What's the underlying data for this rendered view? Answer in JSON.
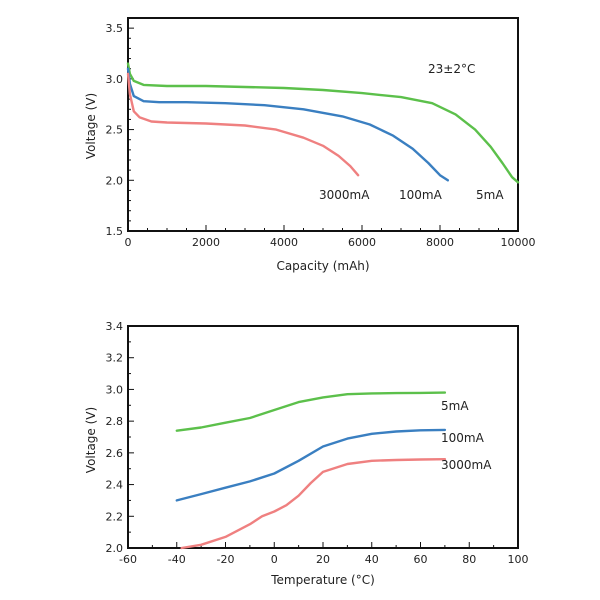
{
  "chart_data": [
    {
      "type": "line",
      "title": "",
      "xlabel": "Capacity (mAh)",
      "ylabel": "Voltage (V)",
      "xlim": [
        0,
        10000
      ],
      "ylim": [
        1.5,
        3.6
      ],
      "xticks": [
        0,
        2000,
        4000,
        6000,
        8000,
        10000
      ],
      "yticks": [
        1.5,
        2.0,
        2.5,
        3.0,
        3.5
      ],
      "annotation": "23±2°C",
      "series": [
        {
          "name": "5mA",
          "color": "#5cc04b",
          "x": [
            0,
            50,
            150,
            400,
            1000,
            2000,
            3000,
            4000,
            5000,
            6000,
            7000,
            7800,
            8400,
            8900,
            9300,
            9600,
            9850,
            10000
          ],
          "y": [
            3.15,
            3.05,
            2.98,
            2.94,
            2.93,
            2.93,
            2.92,
            2.91,
            2.89,
            2.86,
            2.82,
            2.76,
            2.65,
            2.5,
            2.33,
            2.17,
            2.03,
            1.98
          ]
        },
        {
          "name": "100mA",
          "color": "#3a7fc1",
          "x": [
            0,
            50,
            150,
            400,
            800,
            1500,
            2500,
            3500,
            4500,
            5500,
            6200,
            6800,
            7300,
            7700,
            8000,
            8200
          ],
          "y": [
            3.1,
            2.95,
            2.83,
            2.78,
            2.77,
            2.77,
            2.76,
            2.74,
            2.7,
            2.63,
            2.55,
            2.44,
            2.31,
            2.17,
            2.05,
            2.0
          ]
        },
        {
          "name": "3000mA",
          "color": "#ef8080",
          "x": [
            0,
            50,
            150,
            300,
            600,
            1000,
            2000,
            3000,
            3800,
            4500,
            5000,
            5400,
            5700,
            5900
          ],
          "y": [
            3.05,
            2.85,
            2.68,
            2.62,
            2.58,
            2.57,
            2.56,
            2.54,
            2.5,
            2.42,
            2.34,
            2.24,
            2.14,
            2.05
          ]
        }
      ],
      "series_labels": [
        "3000mA",
        "100mA",
        "5mA"
      ]
    },
    {
      "type": "line",
      "title": "",
      "xlabel": "Temperature (°C)",
      "ylabel": "Voltage (V)",
      "xlim": [
        -60,
        100
      ],
      "ylim": [
        2.0,
        3.4
      ],
      "xticks": [
        -60,
        -40,
        -20,
        0,
        20,
        40,
        60,
        80,
        100
      ],
      "yticks": [
        2.0,
        2.2,
        2.4,
        2.6,
        2.8,
        3.0,
        3.2,
        3.4
      ],
      "series": [
        {
          "name": "5mA",
          "color": "#5cc04b",
          "x": [
            -40,
            -30,
            -20,
            -10,
            0,
            10,
            20,
            30,
            40,
            50,
            60,
            70
          ],
          "y": [
            2.74,
            2.76,
            2.79,
            2.82,
            2.87,
            2.92,
            2.95,
            2.97,
            2.975,
            2.977,
            2.978,
            2.98
          ]
        },
        {
          "name": "100mA",
          "color": "#3a7fc1",
          "x": [
            -40,
            -30,
            -20,
            -10,
            0,
            10,
            20,
            30,
            40,
            50,
            60,
            70
          ],
          "y": [
            2.3,
            2.34,
            2.38,
            2.42,
            2.47,
            2.55,
            2.64,
            2.69,
            2.72,
            2.735,
            2.742,
            2.745
          ]
        },
        {
          "name": "3000mA",
          "color": "#ef8080",
          "x": [
            -38,
            -30,
            -20,
            -10,
            -5,
            0,
            5,
            10,
            15,
            20,
            30,
            40,
            50,
            60,
            70
          ],
          "y": [
            2.0,
            2.02,
            2.07,
            2.15,
            2.2,
            2.23,
            2.27,
            2.33,
            2.41,
            2.48,
            2.53,
            2.55,
            2.555,
            2.558,
            2.56
          ]
        }
      ],
      "series_labels": [
        "5mA",
        "100mA",
        "3000mA"
      ]
    }
  ]
}
